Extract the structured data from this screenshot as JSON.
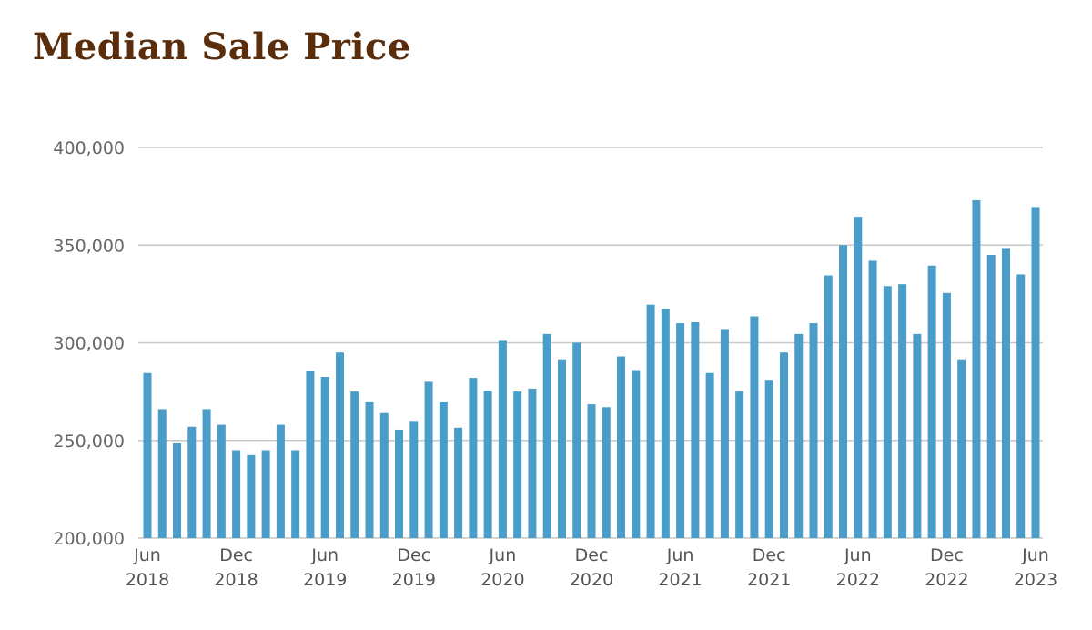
{
  "chart_data": {
    "type": "bar",
    "title": "Median Sale Price",
    "bar_color": "#4a9cc9",
    "grid_color": "#c8c8c8",
    "title_color": "#5a2d0c",
    "ylim": [
      200000,
      400000
    ],
    "yticks": [
      "200,000",
      "250,000",
      "300,000",
      "350,000",
      "400,000"
    ],
    "ytick_values": [
      200000,
      250000,
      300000,
      350000,
      400000
    ],
    "grid": true,
    "xticks": [
      {
        "index": 0,
        "month": "Jun",
        "year": "2018"
      },
      {
        "index": 6,
        "month": "Dec",
        "year": "2018"
      },
      {
        "index": 12,
        "month": "Jun",
        "year": "2019"
      },
      {
        "index": 18,
        "month": "Dec",
        "year": "2019"
      },
      {
        "index": 24,
        "month": "Jun",
        "year": "2020"
      },
      {
        "index": 30,
        "month": "Dec",
        "year": "2020"
      },
      {
        "index": 36,
        "month": "Jun",
        "year": "2021"
      },
      {
        "index": 42,
        "month": "Dec",
        "year": "2021"
      },
      {
        "index": 48,
        "month": "Jun",
        "year": "2022"
      },
      {
        "index": 54,
        "month": "Dec",
        "year": "2022"
      },
      {
        "index": 60,
        "month": "Jun",
        "year": "2023"
      }
    ],
    "values": [
      284500,
      266000,
      248500,
      257000,
      266000,
      258000,
      245000,
      242500,
      245000,
      258000,
      245000,
      285500,
      282500,
      295000,
      275000,
      269500,
      264000,
      255500,
      260000,
      280000,
      269500,
      256500,
      282000,
      275500,
      301000,
      275000,
      276500,
      304500,
      291500,
      300000,
      268500,
      267000,
      293000,
      286000,
      319500,
      317500,
      310000,
      310500,
      284500,
      307000,
      275000,
      313500,
      281000,
      295000,
      304500,
      310000,
      334500,
      350000,
      364500,
      342000,
      329000,
      330000,
      304500,
      339500,
      325500,
      291500,
      373000,
      345000,
      348500,
      335000,
      369500
    ]
  }
}
